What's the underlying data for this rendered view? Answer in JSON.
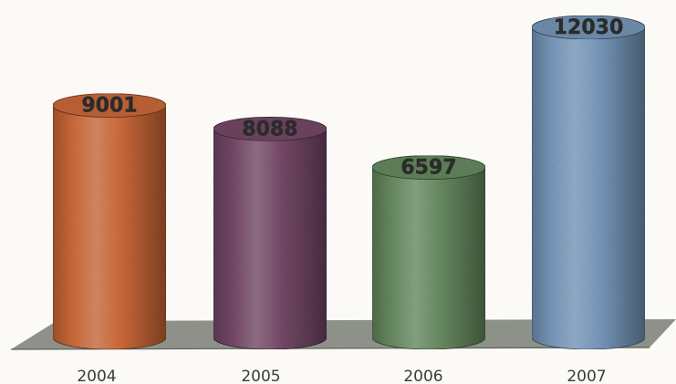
{
  "chart_data": {
    "type": "bar",
    "style": "3d-cylinder",
    "categories": [
      "2004",
      "2005",
      "2006",
      "2007"
    ],
    "values": [
      9001,
      8088,
      6597,
      12030
    ],
    "value_labels": [
      "9001",
      "8088",
      "6597",
      "12030"
    ],
    "title": "",
    "xlabel": "",
    "ylabel": "",
    "ylim": [
      0,
      12030
    ],
    "grid": false,
    "legend": "none",
    "colors": [
      "#d9713f",
      "#7e4f6f",
      "#6f9468",
      "#7fa2c6"
    ],
    "floor_color": "#8d9189"
  }
}
